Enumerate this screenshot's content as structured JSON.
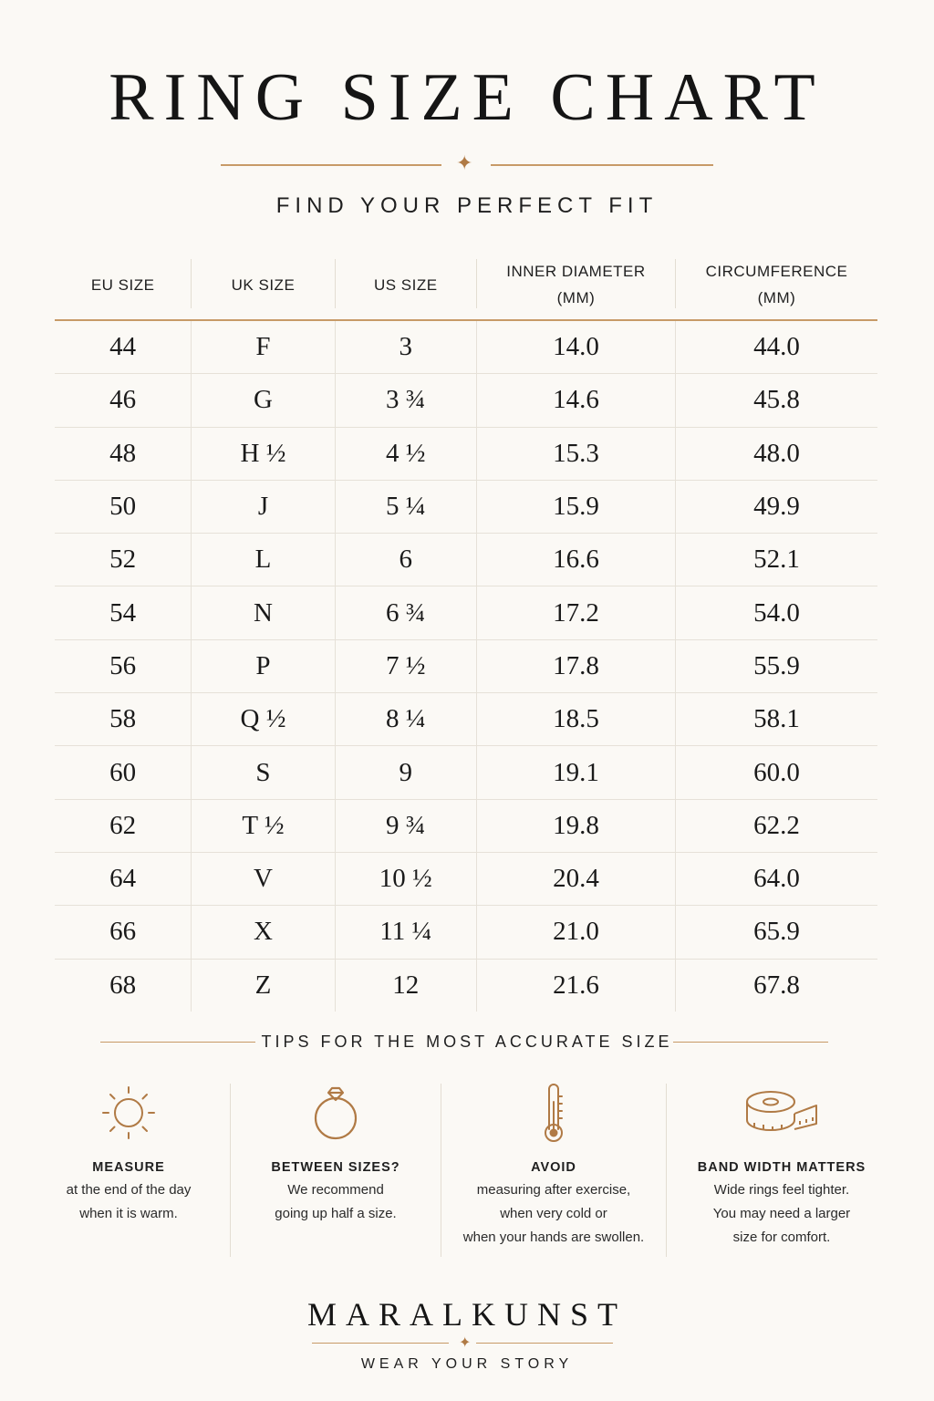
{
  "title": "RING SIZE CHART",
  "subtitle": "FIND YOUR PERFECT FIT",
  "colors": {
    "accent": "#c79a67",
    "ink": "#1b1b1b",
    "background": "#fbf9f5"
  },
  "table": {
    "headers": [
      {
        "line1": "EU SIZE",
        "line2": ""
      },
      {
        "line1": "UK SIZE",
        "line2": ""
      },
      {
        "line1": "US SIZE",
        "line2": ""
      },
      {
        "line1": "INNER DIAMETER",
        "line2": "(MM)"
      },
      {
        "line1": "CIRCUMFERENCE",
        "line2": "(MM)"
      }
    ],
    "rows": [
      [
        "44",
        "F",
        "3",
        "14.0",
        "44.0"
      ],
      [
        "46",
        "G",
        "3 ¾",
        "14.6",
        "45.8"
      ],
      [
        "48",
        "H ½",
        "4 ½",
        "15.3",
        "48.0"
      ],
      [
        "50",
        "J",
        "5 ¼",
        "15.9",
        "49.9"
      ],
      [
        "52",
        "L",
        "6",
        "16.6",
        "52.1"
      ],
      [
        "54",
        "N",
        "6 ¾",
        "17.2",
        "54.0"
      ],
      [
        "56",
        "P",
        "7 ½",
        "17.8",
        "55.9"
      ],
      [
        "58",
        "Q ½",
        "8 ¼",
        "18.5",
        "58.1"
      ],
      [
        "60",
        "S",
        "9",
        "19.1",
        "60.0"
      ],
      [
        "62",
        "T ½",
        "9 ¾",
        "19.8",
        "62.2"
      ],
      [
        "64",
        "V",
        "10 ½",
        "20.4",
        "64.0"
      ],
      [
        "66",
        "X",
        "11 ¼",
        "21.0",
        "65.9"
      ],
      [
        "68",
        "Z",
        "12",
        "21.6",
        "67.8"
      ]
    ]
  },
  "tips": {
    "heading": "TIPS FOR THE MOST ACCURATE SIZE",
    "items": [
      {
        "icon": "sun-icon",
        "title": "MEASURE",
        "lines": [
          "at the end of the day",
          "when it is warm."
        ]
      },
      {
        "icon": "ring-icon",
        "title": "BETWEEN SIZES?",
        "lines": [
          "We recommend",
          "going up half a size."
        ]
      },
      {
        "icon": "thermometer-icon",
        "title": "AVOID",
        "lines": [
          "measuring after exercise,",
          "when very cold or",
          "when your hands are swollen."
        ]
      },
      {
        "icon": "measuring-tape-icon",
        "title": "BAND WIDTH MATTERS",
        "lines": [
          "Wide rings feel tighter.",
          "You may need a larger",
          "size for comfort."
        ]
      }
    ]
  },
  "brand": {
    "name": "MARALKUNST",
    "tagline": "WEAR YOUR STORY"
  }
}
